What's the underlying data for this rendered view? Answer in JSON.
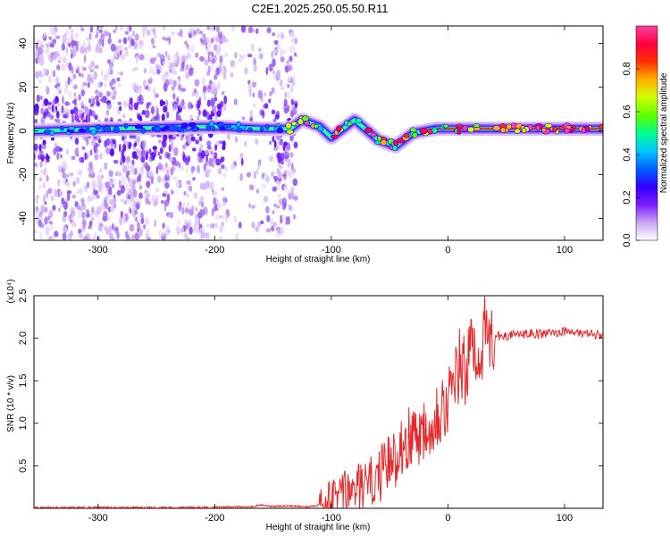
{
  "title": "C2E1.2025.250.05.50.R11",
  "chart_data": [
    {
      "type": "heatmap",
      "title": "C2E1.2025.250.05.50.R11",
      "xlabel": "Height of straight line (km)",
      "ylabel": "Frequency (Hz)",
      "xlim": [
        -355,
        133
      ],
      "ylim": [
        -50,
        48
      ],
      "xticks": [
        -300,
        -200,
        -100,
        0,
        100
      ],
      "yticks": [
        -40,
        -20,
        0,
        20,
        40
      ],
      "colorbar": {
        "label": "Normalized spectral amplitude",
        "range": [
          0.0,
          1.0
        ],
        "ticks": [
          "0.0",
          "0.2",
          "0.4",
          "0.6",
          "0.8"
        ],
        "colors": [
          "#ffffff",
          "#c9a6f2",
          "#7a1cff",
          "#3000ff",
          "#0060ff",
          "#00c8ff",
          "#00ff90",
          "#60ff00",
          "#d0ff00",
          "#ffb000",
          "#ff3000",
          "#ff0040",
          "#ff40a0"
        ]
      },
      "ridge": [
        {
          "x": -355,
          "y": 0
        },
        {
          "x": -290,
          "y": 1
        },
        {
          "x": -200,
          "y": 2
        },
        {
          "x": -160,
          "y": 1
        },
        {
          "x": -135,
          "y": 1
        },
        {
          "x": -125,
          "y": 5
        },
        {
          "x": -110,
          "y": 2
        },
        {
          "x": -100,
          "y": -3
        },
        {
          "x": -80,
          "y": 5
        },
        {
          "x": -60,
          "y": -4
        },
        {
          "x": -45,
          "y": -7
        },
        {
          "x": -30,
          "y": -1
        },
        {
          "x": -10,
          "y": 1
        },
        {
          "x": 20,
          "y": 1
        },
        {
          "x": 60,
          "y": 1
        },
        {
          "x": 100,
          "y": 1
        },
        {
          "x": 133,
          "y": 1
        }
      ]
    },
    {
      "type": "line",
      "xlabel": "Height of straight line (km)",
      "ylabel": "SNR (10 * v/v)",
      "y_multiplier": "(x10⁴)",
      "xlim": [
        -355,
        133
      ],
      "ylim": [
        0,
        2.5
      ],
      "xticks": [
        -300,
        -200,
        -100,
        0,
        100
      ],
      "yticks": [
        0.5,
        1.0,
        1.5,
        2.0,
        2.5
      ],
      "series": [
        {
          "name": "SNR",
          "color": "#e8282a",
          "x": [
            -355,
            -300,
            -250,
            -200,
            -170,
            -160,
            -150,
            -140,
            -120,
            -105,
            -95,
            -85,
            -75,
            -65,
            -55,
            -45,
            -38,
            -30,
            -20,
            -12,
            -5,
            0,
            5,
            10,
            14,
            20,
            30,
            40,
            50,
            60,
            70,
            80,
            90,
            95,
            100,
            110,
            115,
            118,
            120,
            125,
            133
          ],
          "values": [
            0.01,
            0.01,
            0.01,
            0.01,
            0.02,
            0.04,
            0.02,
            0.03,
            0.02,
            0.05,
            0.15,
            0.2,
            0.25,
            0.3,
            0.45,
            0.6,
            0.8,
            0.85,
            0.95,
            1.1,
            1.2,
            1.25,
            1.4,
            1.7,
            1.55,
            1.85,
            2.0,
            2.02,
            2.03,
            2.04,
            2.05,
            2.05,
            2.06,
            2.07,
            2.08,
            2.07,
            2.05,
            2.1,
            2.05,
            2.04,
            2.03
          ]
        }
      ]
    }
  ]
}
